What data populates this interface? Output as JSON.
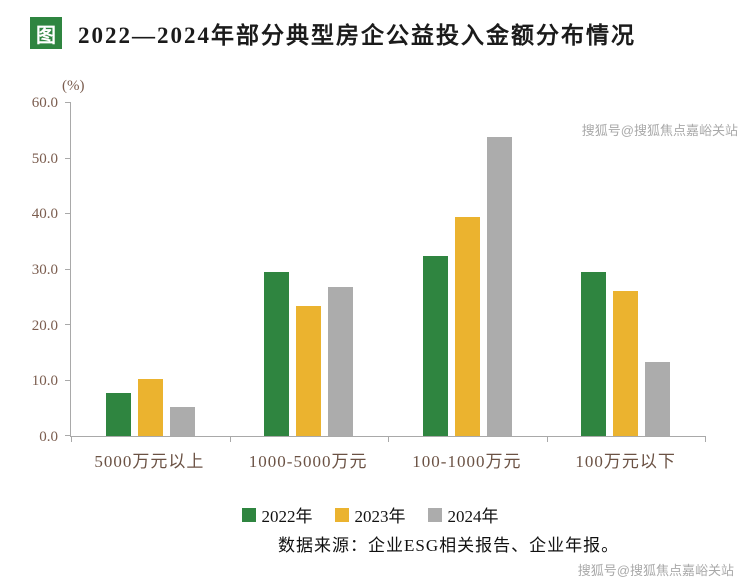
{
  "header": {
    "badge": "图",
    "title": "2022—2024年部分典型房企公益投入金额分布情况"
  },
  "watermarks": {
    "top": "搜狐号@搜狐焦点嘉峪关站",
    "bottom": "搜狐号@搜狐焦点嘉峪关站"
  },
  "footer": {
    "source": "数据来源：企业ESG相关报告、企业年报。"
  },
  "chart_data": {
    "type": "bar",
    "title": "2022—2024年部分典型房企公益投入金额分布情况",
    "unit": "(%)",
    "categories": [
      "5000万元以上",
      "1000-5000万元",
      "100-1000万元",
      "100万元以下"
    ],
    "series": [
      {
        "name": "2022年",
        "color": "#2F8540",
        "values": [
          7.8,
          29.5,
          32.4,
          29.5
        ]
      },
      {
        "name": "2023年",
        "color": "#EBB32F",
        "values": [
          10.3,
          23.5,
          39.4,
          26.2
        ]
      },
      {
        "name": "2024年",
        "color": "#ACACAC",
        "values": [
          5.3,
          26.8,
          53.9,
          13.3
        ]
      }
    ],
    "ylim": [
      0,
      60
    ],
    "ytick_labels": [
      "0.0",
      "10.0",
      "20.0",
      "30.0",
      "40.0",
      "50.0",
      "60.0"
    ],
    "grid": false,
    "legend_position": "bottom",
    "xlabel": "",
    "ylabel": "(%)"
  }
}
